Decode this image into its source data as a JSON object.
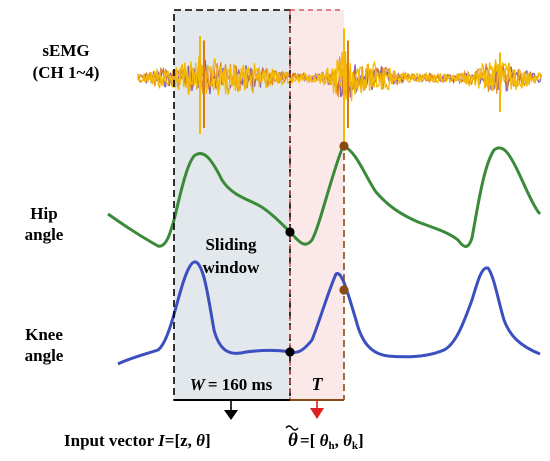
{
  "labels": {
    "semg_line1": "sEMG",
    "semg_line2": "(CH 1~4)",
    "hip_line1": "Hip",
    "hip_line2": "angle",
    "knee_line1": "Knee",
    "knee_line2": "angle",
    "window_line1": "Sliding",
    "window_line2": "window",
    "window_size_var": "W",
    "window_size_value": "= 160 ms",
    "delay_var": "T",
    "input_prefix": "Input vector ",
    "input_var": "I",
    "input_eq": "=[z, ",
    "input_theta": "θ",
    "input_close": "]",
    "output_theta": "θ",
    "output_eq": "=[ ",
    "output_theta_h": "θ",
    "output_sub_h": "h",
    "output_sep": ", ",
    "output_theta_k": "θ",
    "output_sub_k": "k",
    "output_close": "]"
  },
  "colors": {
    "semg_primary": "#f5b800",
    "semg_secondary": "#7a4fb5",
    "semg_tertiary": "#e07a10",
    "hip_curve": "#3a8a3a",
    "knee_curve": "#3a4fc0",
    "window_fill": "#e3e8ec",
    "delay_fill": "#fbe9ea",
    "marker_black": "#000000",
    "marker_brown": "#8b4a14",
    "arrow_red": "#e02020"
  }
}
